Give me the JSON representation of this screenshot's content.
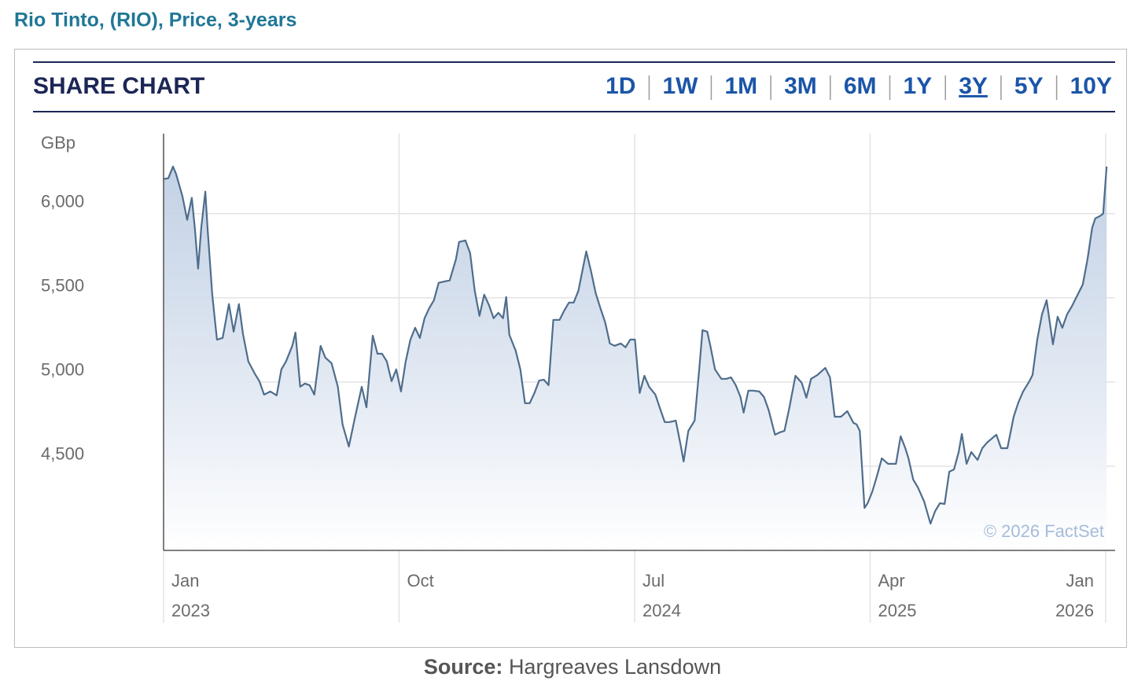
{
  "header": {
    "title": "Rio Tinto, (RIO), Price, 3-years"
  },
  "widget": {
    "title": "SHARE CHART",
    "ranges": [
      "1D",
      "1W",
      "1M",
      "3M",
      "6M",
      "1Y",
      "3Y",
      "5Y",
      "10Y"
    ],
    "active_range": 6
  },
  "chart_data": {
    "type": "area",
    "y_unit": "GBp",
    "credit": "© 2026 FactSet",
    "color": "#4f6d8c",
    "fill_color": "#b4c6df",
    "grid": true,
    "xlim": [
      2023,
      2026.03
    ],
    "ylim": [
      4000,
      6475
    ],
    "yticks": [
      {
        "value": 4500,
        "label": "4,500"
      },
      {
        "value": 5000,
        "label": "5,000"
      },
      {
        "value": 5500,
        "label": "5,500"
      },
      {
        "value": 6000,
        "label": "6,000"
      }
    ],
    "xticks": [
      {
        "value": 2023,
        "label": "Jan"
      },
      {
        "value": 2023.75,
        "label": "Oct"
      },
      {
        "value": 2024.5,
        "label": "Jul"
      },
      {
        "value": 2025.25,
        "label": "Apr"
      },
      {
        "value": 2026,
        "label": "Jan"
      }
    ],
    "xtick_years": [
      "2023",
      null,
      "2024",
      "2025",
      "2026"
    ],
    "x": [
      2023.0,
      2023.015,
      2023.03,
      2023.04,
      2023.06,
      2023.075,
      2023.09,
      2023.1,
      2023.11,
      2023.12,
      2023.133,
      2023.14,
      2023.155,
      2023.17,
      2023.188,
      2023.208,
      2023.223,
      2023.24,
      2023.253,
      2023.27,
      2023.29,
      2023.305,
      2023.32,
      2023.34,
      2023.36,
      2023.375,
      2023.39,
      2023.41,
      2023.42,
      2023.435,
      2023.45,
      2023.465,
      2023.48,
      2023.5,
      2023.515,
      2023.535,
      2023.555,
      2023.57,
      2023.59,
      2023.61,
      2023.631,
      2023.646,
      2023.666,
      2023.681,
      2023.696,
      2023.711,
      2023.726,
      2023.741,
      2023.756,
      2023.771,
      2023.786,
      2023.801,
      2023.816,
      2023.831,
      2023.846,
      2023.861,
      2023.876,
      2023.896,
      2023.911,
      2023.931,
      2023.941,
      2023.961,
      2023.976,
      2023.991,
      2024.006,
      2024.021,
      2024.036,
      2024.051,
      2024.066,
      2024.081,
      2024.091,
      2024.101,
      2024.121,
      2024.136,
      2024.151,
      2024.166,
      2024.181,
      2024.196,
      2024.211,
      2024.226,
      2024.241,
      2024.261,
      2024.276,
      2024.291,
      2024.306,
      2024.321,
      2024.331,
      2024.346,
      2024.361,
      2024.376,
      2024.391,
      2024.406,
      2024.421,
      2024.436,
      2024.456,
      2024.471,
      2024.486,
      2024.501,
      2024.516,
      2024.531,
      2024.546,
      2024.566,
      2024.581,
      2024.596,
      2024.611,
      2024.631,
      2024.646,
      2024.656,
      2024.671,
      2024.691,
      2024.706,
      2024.716,
      2024.731,
      2024.741,
      2024.756,
      2024.776,
      2024.792,
      2024.807,
      2024.822,
      2024.837,
      2024.847,
      2024.862,
      2024.877,
      2024.897,
      2024.912,
      2024.927,
      2024.947,
      2024.962,
      2024.977,
      2024.992,
      2025.012,
      2025.032,
      2025.047,
      2025.062,
      2025.082,
      2025.107,
      2025.122,
      2025.137,
      2025.157,
      2025.177,
      2025.197,
      2025.207,
      2025.217,
      2025.232,
      2025.242,
      2025.257,
      2025.272,
      2025.287,
      2025.307,
      2025.332,
      2025.347,
      2025.362,
      2025.372,
      2025.387,
      2025.402,
      2025.422,
      2025.442,
      2025.457,
      2025.472,
      2025.487,
      2025.502,
      2025.517,
      2025.532,
      2025.542,
      2025.557,
      2025.572,
      2025.592,
      2025.607,
      2025.622,
      2025.637,
      2025.652,
      2025.667,
      2025.687,
      2025.707,
      2025.722,
      2025.737,
      2025.757,
      2025.767,
      2025.782,
      2025.797,
      2025.812,
      2025.822,
      2025.832,
      2025.847,
      2025.862,
      2025.877,
      2025.892,
      2025.907,
      2025.927,
      2025.942,
      2025.957,
      2025.967,
      2025.982,
      2025.992,
      2026.003
    ],
    "values": [
      6206,
      6210,
      6280,
      6234,
      6103,
      5963,
      6094,
      5907,
      5673,
      5916,
      6131,
      5916,
      5519,
      5252,
      5262,
      5463,
      5299,
      5463,
      5285,
      5122,
      5051,
      5005,
      4925,
      4944,
      4921,
      5075,
      5122,
      5215,
      5294,
      4972,
      4991,
      4981,
      4925,
      5215,
      5145,
      5112,
      4972,
      4748,
      4617,
      4794,
      4972,
      4850,
      5276,
      5168,
      5168,
      5122,
      5005,
      5075,
      4944,
      5122,
      5252,
      5322,
      5262,
      5379,
      5439,
      5486,
      5589,
      5598,
      5603,
      5729,
      5832,
      5841,
      5766,
      5542,
      5393,
      5519,
      5458,
      5379,
      5411,
      5379,
      5505,
      5280,
      5187,
      5075,
      4874,
      4874,
      4935,
      5009,
      5014,
      4981,
      5369,
      5369,
      5425,
      5472,
      5472,
      5542,
      5636,
      5776,
      5659,
      5528,
      5439,
      5355,
      5229,
      5215,
      5229,
      5206,
      5252,
      5252,
      4935,
      5037,
      4972,
      4925,
      4841,
      4762,
      4762,
      4771,
      4631,
      4528,
      4710,
      4771,
      5084,
      5308,
      5299,
      5215,
      5075,
      5019,
      5019,
      5028,
      4981,
      4911,
      4818,
      4949,
      4949,
      4944,
      4911,
      4832,
      4687,
      4701,
      4710,
      4841,
      5037,
      4995,
      4907,
      5019,
      5042,
      5084,
      5028,
      4794,
      4794,
      4827,
      4757,
      4748,
      4710,
      4252,
      4280,
      4350,
      4444,
      4547,
      4514,
      4514,
      4678,
      4607,
      4547,
      4421,
      4374,
      4290,
      4159,
      4234,
      4280,
      4276,
      4467,
      4481,
      4584,
      4692,
      4514,
      4584,
      4537,
      4607,
      4640,
      4664,
      4687,
      4607,
      4607,
      4794,
      4879,
      4944,
      5005,
      5042,
      5252,
      5402,
      5486,
      5355,
      5224,
      5388,
      5322,
      5402,
      5449,
      5505,
      5580,
      5729,
      5916,
      5972,
      5986,
      6000,
      6280
    ]
  },
  "source": {
    "label": "Source:",
    "text": "Hargreaves Lansdown"
  }
}
